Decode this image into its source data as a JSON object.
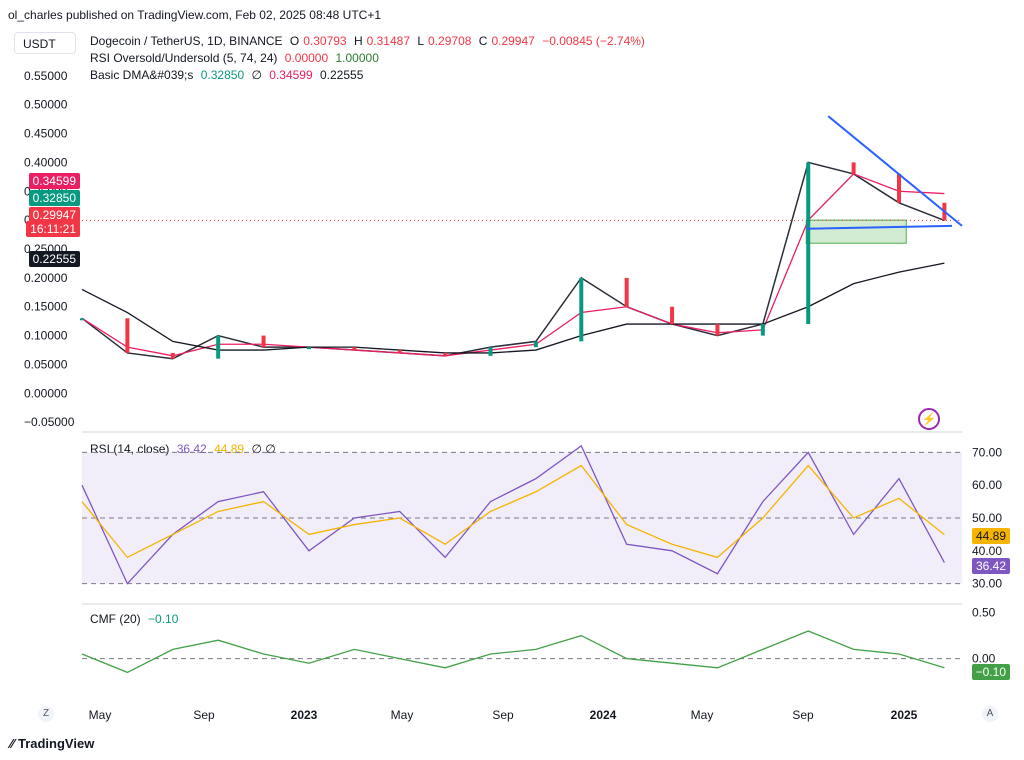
{
  "publisher": "ol_charles published on TradingView.com, Feb 02, 2025 08:48 UTC+1",
  "currency": "USDT",
  "legend": {
    "symbol": "Dogecoin / TetherUS, 1D, BINANCE",
    "open_label": "O",
    "open": "0.30793",
    "high_label": "H",
    "high": "0.31487",
    "low_label": "L",
    "low": "0.29708",
    "close_label": "C",
    "close": "0.29947",
    "change": "−0.00845 (−2.74%)",
    "rsi_ind_label": "RSI Oversold/Undersold (5, 74, 24)",
    "rsi_ind_v1": "0.00000",
    "rsi_ind_v2": "1.00000",
    "dma_label": "Basic DMA&#039;s",
    "dma_v1": "0.32850",
    "dma_sep": "∅",
    "dma_v2": "0.34599",
    "dma_v3": "0.22555"
  },
  "rsi_legend": {
    "label": "RSI (14, close)",
    "v1": "36.42",
    "v2": "44.89",
    "sep": "∅ ∅"
  },
  "cmf_legend": {
    "label": "CMF (20)",
    "v1": "−0.10"
  },
  "badges": {
    "ma_pink": "0.34599",
    "ma_teal": "0.32850",
    "price": "0.29947",
    "countdown": "16:11:21",
    "ma_black": "0.22555",
    "rsi_signal": "44.89",
    "rsi_value": "36.42",
    "cmf_value": "−0.10"
  },
  "footer": {
    "brand": "TradingView",
    "z": "Z",
    "a": "A"
  },
  "colors": {
    "up": "#089981",
    "down": "#f23645",
    "ma_pink": "#e91e63",
    "ma_black": "#131722",
    "rsi": "#7e57c2",
    "rsi_signal": "#f5b400",
    "cmf": "#43a047",
    "trendline": "#2962ff",
    "zone": "#4caf50"
  },
  "chart_data": [
    {
      "type": "line",
      "title": "Dogecoin / TetherUS, 1D, BINANCE",
      "x_ticks": [
        "May",
        "Sep",
        "2023",
        "May",
        "Sep",
        "2024",
        "May",
        "Sep",
        "2025"
      ],
      "x": [
        "2022-05",
        "2022-07",
        "2022-09",
        "2022-11",
        "2023-01",
        "2023-03",
        "2023-05",
        "2023-07",
        "2023-09",
        "2023-11",
        "2024-01",
        "2024-03",
        "2024-05",
        "2024-07",
        "2024-09",
        "2024-10",
        "2024-11",
        "2024-12",
        "2025-01",
        "2025-02"
      ],
      "y_ticks": [
        "0.55000",
        "0.50000",
        "0.45000",
        "0.40000",
        "0.35000",
        "0.30000",
        "0.25000",
        "0.20000",
        "0.15000",
        "0.10000",
        "0.05000",
        "0.00000",
        "−0.05000"
      ],
      "ylim": [
        -0.06,
        0.56
      ],
      "series": [
        {
          "name": "Price",
          "values": [
            0.13,
            0.07,
            0.06,
            0.1,
            0.08,
            0.08,
            0.075,
            0.07,
            0.065,
            0.08,
            0.09,
            0.2,
            0.15,
            0.12,
            0.1,
            0.12,
            0.4,
            0.38,
            0.33,
            0.29947
          ]
        },
        {
          "name": "MA pink",
          "values": [
            0.13,
            0.08,
            0.065,
            0.085,
            0.085,
            0.08,
            0.075,
            0.07,
            0.065,
            0.075,
            0.085,
            0.14,
            0.15,
            0.12,
            0.105,
            0.11,
            0.3,
            0.38,
            0.35,
            0.34599
          ]
        },
        {
          "name": "MA black",
          "values": [
            0.18,
            0.14,
            0.09,
            0.075,
            0.075,
            0.08,
            0.08,
            0.075,
            0.07,
            0.07,
            0.075,
            0.1,
            0.12,
            0.12,
            0.12,
            0.12,
            0.15,
            0.19,
            0.21,
            0.22555
          ]
        }
      ],
      "annotations": {
        "descending_trendline": [
          0.48,
          0.29
        ],
        "support_line": [
          0.285,
          0.29
        ],
        "support_zone": [
          0.26,
          0.3
        ]
      }
    },
    {
      "type": "line",
      "title": "RSI (14, close)",
      "y_ticks": [
        "70.00",
        "60.00",
        "50.00",
        "40.00",
        "30.00"
      ],
      "ylim": [
        25,
        75
      ],
      "bands": [
        30,
        50,
        70
      ],
      "series": [
        {
          "name": "RSI",
          "values": [
            60,
            30,
            45,
            55,
            58,
            40,
            50,
            52,
            38,
            55,
            62,
            72,
            42,
            40,
            33,
            55,
            70,
            45,
            62,
            36.42
          ]
        },
        {
          "name": "Signal",
          "values": [
            55,
            38,
            45,
            52,
            55,
            45,
            48,
            50,
            42,
            52,
            58,
            66,
            48,
            42,
            38,
            50,
            66,
            50,
            56,
            44.89
          ]
        }
      ]
    },
    {
      "type": "line",
      "title": "CMF (20)",
      "y_ticks": [
        "0.50",
        "0.00"
      ],
      "series": [
        {
          "name": "CMF",
          "values": [
            0.05,
            -0.15,
            0.1,
            0.2,
            0.05,
            -0.05,
            0.1,
            0.0,
            -0.1,
            0.05,
            0.1,
            0.25,
            0.0,
            -0.05,
            -0.1,
            0.1,
            0.3,
            0.1,
            0.05,
            -0.1
          ]
        }
      ]
    }
  ]
}
